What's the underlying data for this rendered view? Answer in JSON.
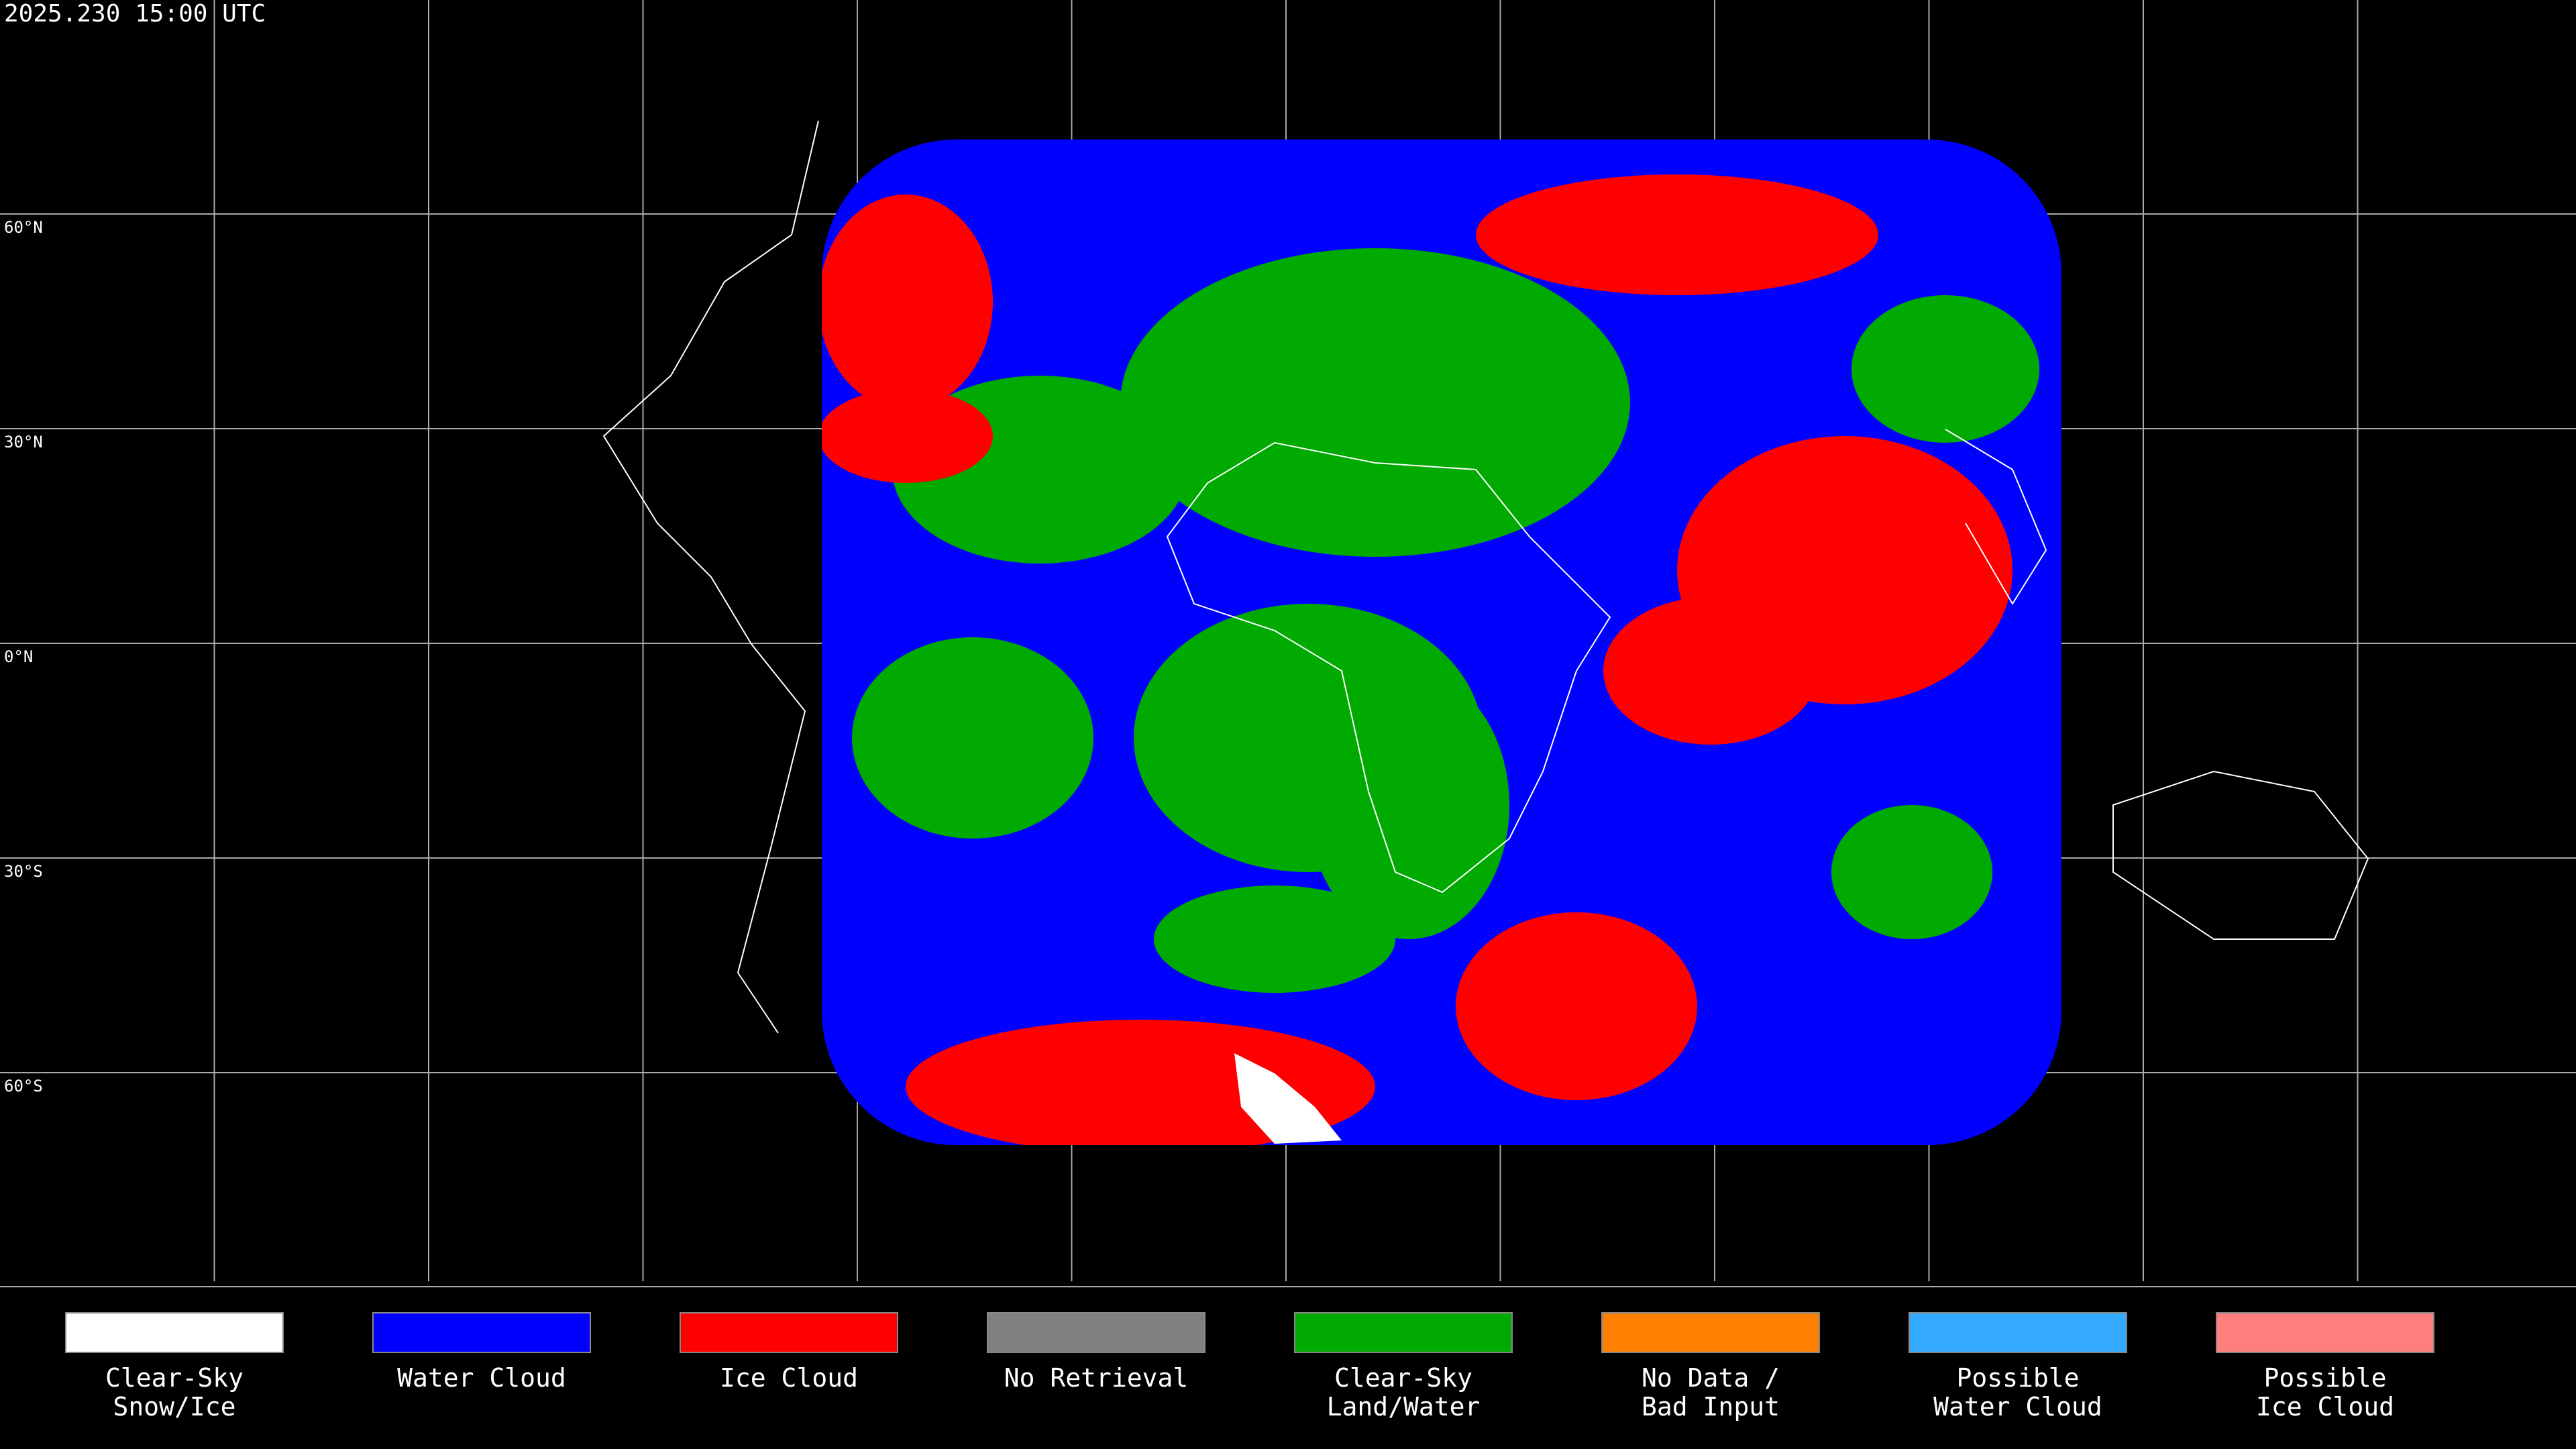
{
  "header": {
    "timestamp": "2025.230 15:00 UTC"
  },
  "latitude_labels": [
    "60°N",
    "30°N",
    "0°N",
    "30°S",
    "60°S"
  ],
  "legend": [
    {
      "lines": [
        "Clear-Sky",
        "Snow/Ice"
      ],
      "color": "#ffffff"
    },
    {
      "lines": [
        "Water Cloud"
      ],
      "color": "#0000ff"
    },
    {
      "lines": [
        "Ice Cloud"
      ],
      "color": "#ff0000"
    },
    {
      "lines": [
        "No Retrieval"
      ],
      "color": "#808080"
    },
    {
      "lines": [
        "Clear-Sky",
        "Land/Water"
      ],
      "color": "#00aa00"
    },
    {
      "lines": [
        "No Data /",
        "Bad Input"
      ],
      "color": "#ff8000"
    },
    {
      "lines": [
        "Possible",
        "Water Cloud"
      ],
      "color": "#33aaff"
    },
    {
      "lines": [
        "Possible",
        "Ice Cloud"
      ],
      "color": "#ff7f7f"
    }
  ]
}
